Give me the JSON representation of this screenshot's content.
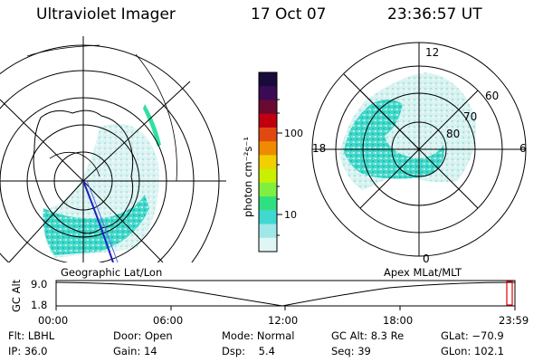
{
  "header": {
    "title": "Ultraviolet Imager",
    "date": "17 Oct 07",
    "time": "23:36:57 UT"
  },
  "geo_panel": {
    "label": "Geographic Lat/Lon"
  },
  "apex_panel": {
    "label": "Apex  MLat/MLT",
    "mlt_labels": [
      "12",
      "18",
      "6",
      "0"
    ],
    "lat_labels": [
      "60",
      "70",
      "80"
    ]
  },
  "colorbar": {
    "unit_label": "photon cm⁻²s⁻¹",
    "ticks": [
      "100",
      "10"
    ],
    "scale": "log",
    "colors": [
      "#1a0a3c",
      "#3a0a55",
      "#6a0a30",
      "#c00010",
      "#e04a10",
      "#f08a00",
      "#f0d000",
      "#c8f000",
      "#80f040",
      "#30e080",
      "#40d8d0",
      "#a0e8e8",
      "#dff6f4"
    ]
  },
  "altitude_plot": {
    "ylabel": "GC Alt",
    "y_ticks": [
      "9.0",
      "1.8"
    ],
    "x_ticks": [
      "00:00",
      "06:00",
      "12:00",
      "18:00",
      "23:59"
    ],
    "current_marker_time": "23:36"
  },
  "info": {
    "flt": "Flt: LBHL",
    "ip": "IP: 36.0",
    "door": "Door: Open",
    "gain": "Gain: 14",
    "mode": "Mode: Normal",
    "dsp": "Dsp:    5.4",
    "gcalt": "GC Alt: 8.3 Re",
    "seq": "Seq: 39",
    "glat": "GLat: −70.9",
    "glon": "GLon: 102.1"
  }
}
